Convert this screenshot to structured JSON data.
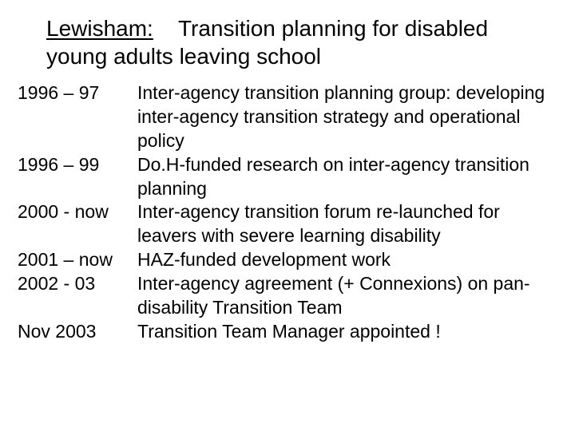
{
  "title": {
    "lead": "Lewisham:",
    "rest": "Transition planning for disabled young adults leaving school"
  },
  "timeline": [
    {
      "date": "1996 – 97",
      "desc": "Inter-agency transition planning group: developing inter-agency transition strategy and operational policy"
    },
    {
      "date": "1996 – 99",
      "desc": "Do.H-funded research on inter-agency transition planning"
    },
    {
      "date": "2000 - now",
      "desc": "Inter-agency transition forum re-launched for leavers with severe learning disability"
    },
    {
      "date": "2001 – now",
      "desc": "HAZ-funded development work"
    },
    {
      "date": "2002 - 03",
      "desc": "Inter-agency agreement (+ Connexions) on pan-disability Transition Team"
    },
    {
      "date": "Nov 2003",
      "desc": "Transition Team Manager appointed !"
    }
  ],
  "colors": {
    "background": "#ffffff",
    "text": "#000000"
  },
  "fonts": {
    "family": "Comic Sans MS",
    "title_size_pt": 28,
    "body_size_pt": 23
  }
}
